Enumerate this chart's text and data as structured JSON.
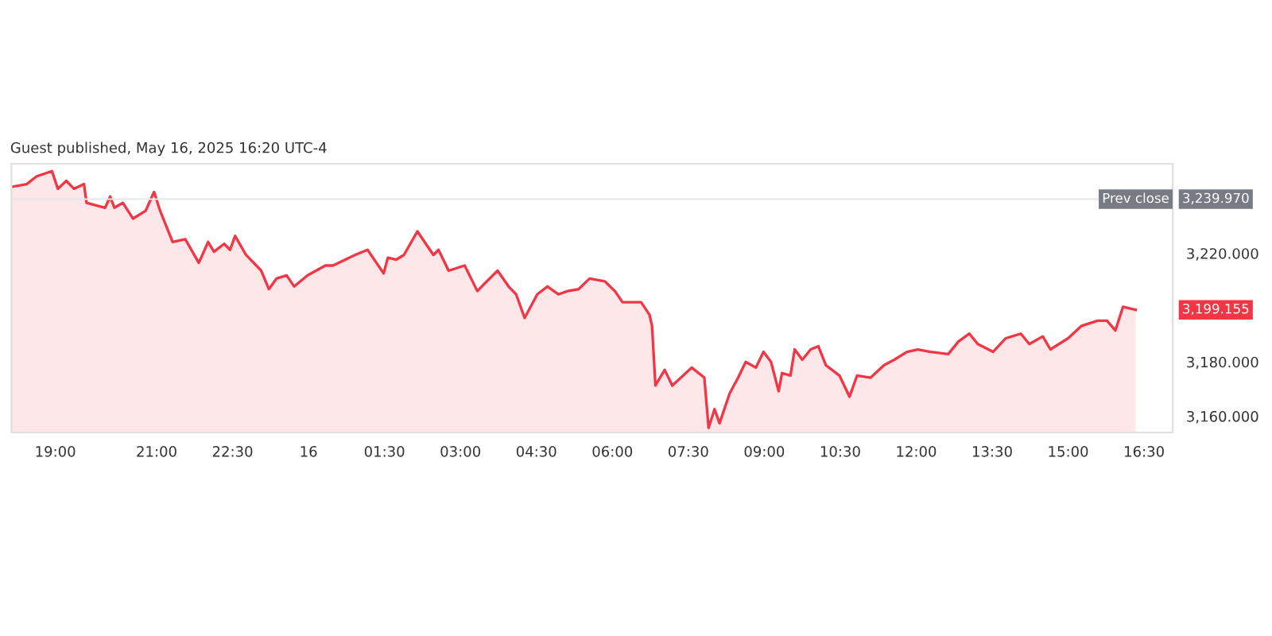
{
  "chart_data": {
    "type": "area",
    "annotations": [
      "Guest published, May 16, 2025 16:20 UTC-4",
      "3,239.970",
      "3,199.155"
    ],
    "xlim": [
      "2025-05-15T18:08",
      "2025-05-16T17:04"
    ],
    "ylim": [
      3154,
      3253
    ],
    "xticks": [
      {
        "value": "2025-05-15T19:00",
        "label": "19:00"
      },
      {
        "value": "2025-05-15T21:00",
        "label": "21:00"
      },
      {
        "value": "2025-05-15T22:30",
        "label": "22:30"
      },
      {
        "value": "2025-05-16T00:00",
        "label": "16"
      },
      {
        "value": "2025-05-16T01:30",
        "label": "01:30"
      },
      {
        "value": "2025-05-16T03:00",
        "label": "03:00"
      },
      {
        "value": "2025-05-16T04:30",
        "label": "04:30"
      },
      {
        "value": "2025-05-16T06:00",
        "label": "06:00"
      },
      {
        "value": "2025-05-16T07:30",
        "label": "07:30"
      },
      {
        "value": "2025-05-16T09:00",
        "label": "09:00"
      },
      {
        "value": "2025-05-16T10:30",
        "label": "10:30"
      },
      {
        "value": "2025-05-16T12:00",
        "label": "12:00"
      },
      {
        "value": "2025-05-16T13:30",
        "label": "13:30"
      },
      {
        "value": "2025-05-16T15:00",
        "label": "15:00"
      },
      {
        "value": "2025-05-16T16:30",
        "label": "16:30"
      }
    ],
    "yticks": [
      {
        "value": 3160,
        "label": "3,160.000"
      },
      {
        "value": 3180,
        "label": "3,180.000"
      },
      {
        "value": 3220,
        "label": "3,220.000"
      }
    ],
    "ref_lines": [
      {
        "axis": "y",
        "value": 3239.97,
        "label": "Prev close",
        "color": "#e6e6e6"
      }
    ],
    "series": [
      {
        "color": "#f23645",
        "x": [
          "2025-05-15T18:08",
          "2025-05-15T18:26",
          "2025-05-15T18:38",
          "2025-05-15T18:56",
          "2025-05-15T19:03",
          "2025-05-15T19:13",
          "2025-05-15T19:22",
          "2025-05-15T19:34",
          "2025-05-15T19:37",
          "2025-05-15T19:59",
          "2025-05-15T20:05",
          "2025-05-15T20:10",
          "2025-05-15T20:20",
          "2025-05-15T20:32",
          "2025-05-15T20:47",
          "2025-05-15T20:57",
          "2025-05-15T21:04",
          "2025-05-15T21:19",
          "2025-05-15T21:34",
          "2025-05-15T21:50",
          "2025-05-15T22:01",
          "2025-05-15T22:08",
          "2025-05-15T22:20",
          "2025-05-15T22:27",
          "2025-05-15T22:33",
          "2025-05-15T22:46",
          "2025-05-15T23:04",
          "2025-05-15T23:13",
          "2025-05-15T23:22",
          "2025-05-15T23:34",
          "2025-05-15T23:43",
          "2025-05-15T23:59",
          "2025-05-16T00:20",
          "2025-05-16T00:29",
          "2025-05-16T00:55",
          "2025-05-16T01:10",
          "2025-05-16T01:29",
          "2025-05-16T01:34",
          "2025-05-16T01:44",
          "2025-05-16T01:53",
          "2025-05-16T02:09",
          "2025-05-16T02:28",
          "2025-05-16T02:34",
          "2025-05-16T02:46",
          "2025-05-16T03:05",
          "2025-05-16T03:20",
          "2025-05-16T03:29",
          "2025-05-16T03:44",
          "2025-05-16T03:57",
          "2025-05-16T04:06",
          "2025-05-16T04:16",
          "2025-05-16T04:31",
          "2025-05-16T04:43",
          "2025-05-16T04:56",
          "2025-05-16T05:07",
          "2025-05-16T05:20",
          "2025-05-16T05:33",
          "2025-05-16T05:51",
          "2025-05-16T06:03",
          "2025-05-16T06:12",
          "2025-05-16T06:34",
          "2025-05-16T06:44",
          "2025-05-16T06:47",
          "2025-05-16T06:51",
          "2025-05-16T07:02",
          "2025-05-16T07:11",
          "2025-05-16T07:24",
          "2025-05-16T07:34",
          "2025-05-16T07:49",
          "2025-05-16T07:54",
          "2025-05-16T08:01",
          "2025-05-16T08:07",
          "2025-05-16T08:19",
          "2025-05-16T08:29",
          "2025-05-16T08:38",
          "2025-05-16T08:50",
          "2025-05-16T08:59",
          "2025-05-16T09:08",
          "2025-05-16T09:17",
          "2025-05-16T09:21",
          "2025-05-16T09:31",
          "2025-05-16T09:36",
          "2025-05-16T09:45",
          "2025-05-16T09:55",
          "2025-05-16T10:04",
          "2025-05-16T10:13",
          "2025-05-16T10:29",
          "2025-05-16T10:41",
          "2025-05-16T10:50",
          "2025-05-16T11:06",
          "2025-05-16T11:22",
          "2025-05-16T11:34",
          "2025-05-16T11:49",
          "2025-05-16T12:02",
          "2025-05-16T12:17",
          "2025-05-16T12:38",
          "2025-05-16T12:50",
          "2025-05-16T13:03",
          "2025-05-16T13:13",
          "2025-05-16T13:31",
          "2025-05-16T13:46",
          "2025-05-16T14:04",
          "2025-05-16T14:14",
          "2025-05-16T14:30",
          "2025-05-16T14:39",
          "2025-05-16T15:00",
          "2025-05-16T15:16",
          "2025-05-16T15:35",
          "2025-05-16T15:46",
          "2025-05-16T15:56",
          "2025-05-16T16:05",
          "2025-05-16T16:20"
        ],
        "values": [
          3244.5,
          3245.5,
          3248.4,
          3250.3,
          3243.8,
          3246.7,
          3243.8,
          3245.5,
          3238.6,
          3236.8,
          3240.9,
          3236.8,
          3238.6,
          3232.8,
          3235.7,
          3242.6,
          3235.8,
          3224.2,
          3225.2,
          3216.5,
          3224.2,
          3220.6,
          3223.5,
          3221.3,
          3226.4,
          3219.4,
          3213.6,
          3206.8,
          3210.7,
          3211.9,
          3207.8,
          3211.9,
          3215.5,
          3215.5,
          3219.4,
          3221.3,
          3212.6,
          3218.4,
          3217.7,
          3219.4,
          3228.1,
          3219.4,
          3221.3,
          3213.6,
          3215.5,
          3206.1,
          3209.0,
          3213.6,
          3207.8,
          3204.9,
          3196.2,
          3204.9,
          3207.8,
          3204.9,
          3206.1,
          3206.8,
          3210.7,
          3209.7,
          3206.1,
          3202.0,
          3202.0,
          3197.4,
          3193.3,
          3171.3,
          3177.1,
          3171.3,
          3175.0,
          3177.9,
          3174.2,
          3155.7,
          3162.6,
          3157.4,
          3168.4,
          3174.2,
          3180.0,
          3177.9,
          3183.7,
          3180.0,
          3169.2,
          3175.9,
          3175.0,
          3184.6,
          3180.8,
          3184.6,
          3185.8,
          3178.8,
          3175.0,
          3167.2,
          3175.0,
          3174.2,
          3178.8,
          3180.8,
          3183.7,
          3184.6,
          3183.7,
          3182.9,
          3187.5,
          3190.4,
          3186.6,
          3183.7,
          3188.7,
          3190.4,
          3186.6,
          3189.4,
          3184.6,
          3188.7,
          3193.3,
          3195.2,
          3195.2,
          3191.6,
          3200.3,
          3199.2
        ]
      }
    ]
  }
}
